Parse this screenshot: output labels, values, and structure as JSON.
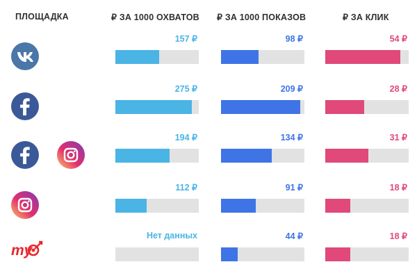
{
  "header": {
    "platform": "ПЛОЩАДКА",
    "reach": "₽ ЗА 1000 ОХВАТОВ",
    "impressions": "₽ ЗА 1000 ПОКАЗОВ",
    "click": "₽ ЗА КЛИК"
  },
  "colors": {
    "reach": "#4ab4e4",
    "impressions": "#3e74e6",
    "click": "#e0497a",
    "track": "#e2e2e2"
  },
  "rows": [
    {
      "logo_icon": "vk-icon",
      "reach_label": "157 ₽",
      "impr_label": "98 ₽",
      "click_label": "54 ₽"
    },
    {
      "logo_icon": "facebook-icon",
      "reach_label": "275 ₽",
      "impr_label": "209 ₽",
      "click_label": "28 ₽"
    },
    {
      "logo_icon": "facebook-plus-instagram-icon",
      "plus": "+",
      "reach_label": "194 ₽",
      "impr_label": "134 ₽",
      "click_label": "31 ₽"
    },
    {
      "logo_icon": "instagram-icon",
      "reach_label": "112 ₽",
      "impr_label": "91 ₽",
      "click_label": "18 ₽"
    },
    {
      "logo_icon": "mytarget-icon",
      "reach_label": "Нет данных",
      "impr_label": "44 ₽",
      "click_label": "18 ₽"
    }
  ],
  "chart_data": {
    "type": "bar",
    "categories": [
      "",
      "",
      "",
      "",
      ""
    ],
    "series": [
      {
        "name": "₽ ЗА 1000 ОХВАТОВ",
        "values": [
          157,
          275,
          194,
          112,
          null
        ],
        "max": 300
      },
      {
        "name": "₽ ЗА 1000 ПОКАЗОВ",
        "values": [
          98,
          209,
          134,
          91,
          44
        ],
        "max": 220
      },
      {
        "name": "₽ ЗА КЛИК",
        "values": [
          54,
          28,
          31,
          18,
          18
        ],
        "max": 60
      }
    ]
  }
}
